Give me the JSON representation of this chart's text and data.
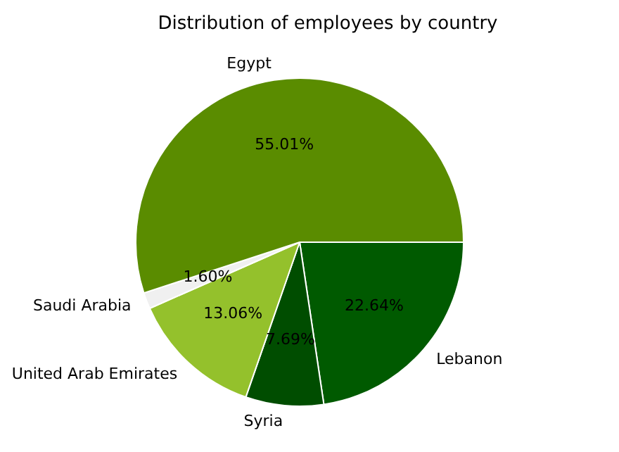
{
  "chart_data": {
    "type": "pie",
    "title": "Distribution of employees by country",
    "categories": [
      "Egypt",
      "Saudi Arabia",
      "United Arab Emirates",
      "Syria",
      "Lebanon"
    ],
    "values": [
      55.01,
      1.6,
      13.06,
      7.69,
      22.64
    ],
    "colors": [
      "#5a8c00",
      "#f0f0f0",
      "#94c12c",
      "#004d00",
      "#005a00"
    ],
    "value_labels": [
      "55.01%",
      "1.60%",
      "13.06%",
      "7.69%",
      "22.64%"
    ],
    "legend": false
  }
}
